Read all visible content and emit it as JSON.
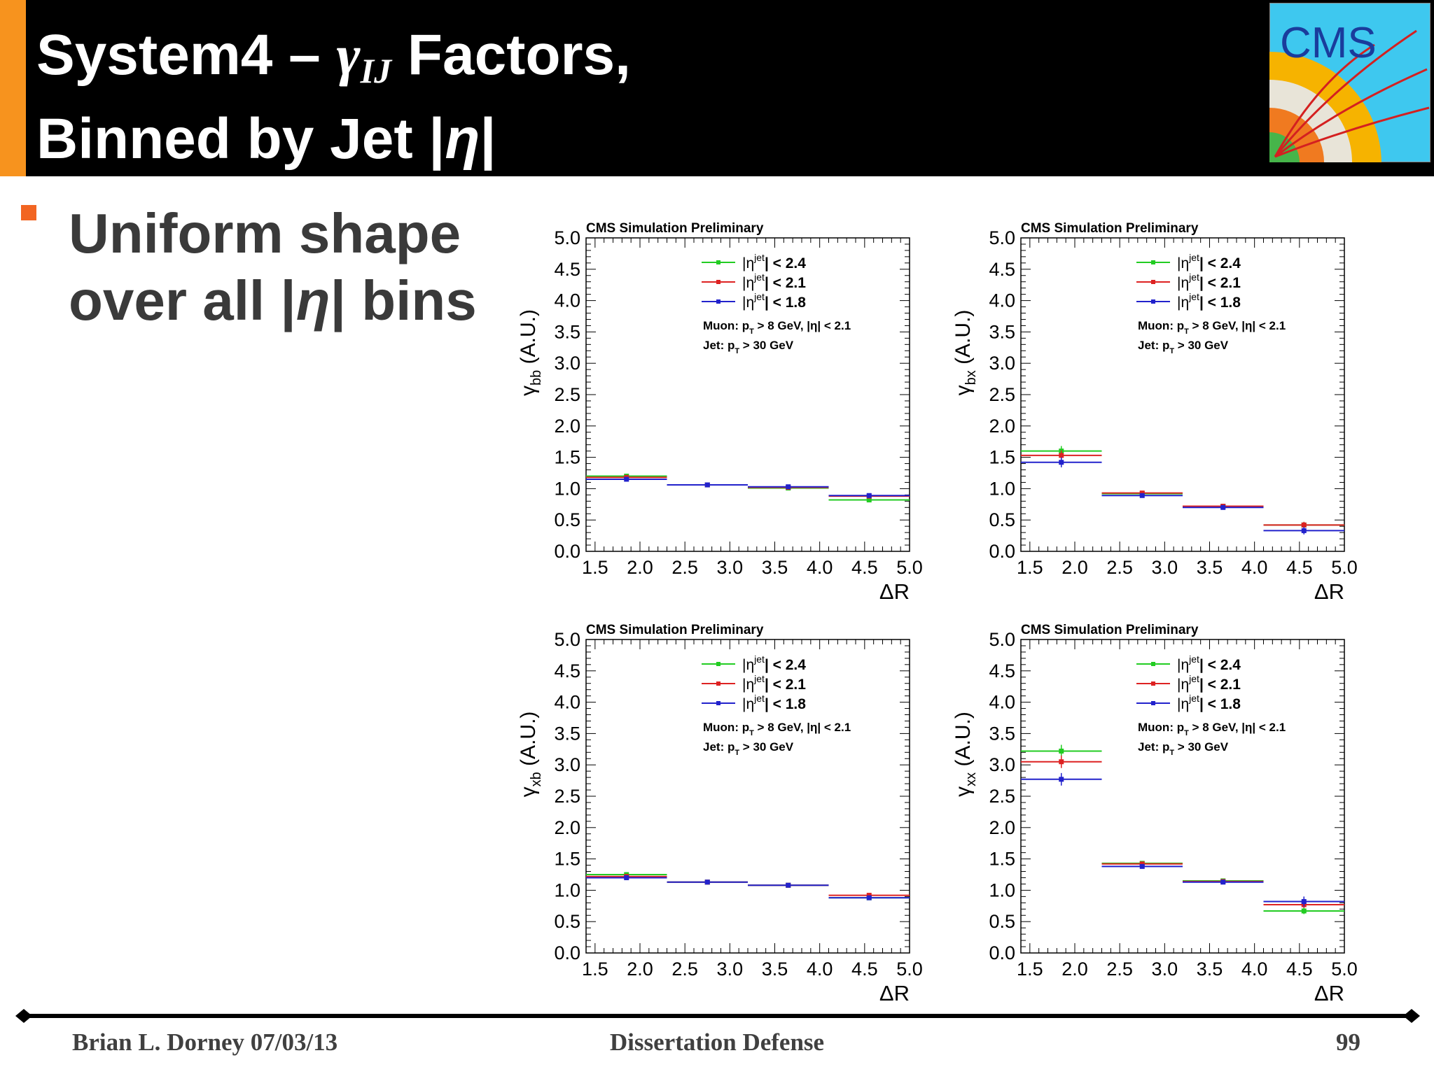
{
  "header": {
    "title_line1_prefix": "System4 – ",
    "title_symbol": "γ",
    "title_subscript": "IJ",
    "title_line1_suffix": " Factors,",
    "title_line2_prefix": "Binned by Jet |",
    "title_line2_eta": "η",
    "title_line2_suffix": "|",
    "logo_text": "CMS",
    "colors": {
      "background": "#000000",
      "accent": "#f7931e",
      "text": "#ffffff"
    }
  },
  "bullet": {
    "line1": "Uniform shape",
    "line2_prefix": "over all |",
    "line2_eta": "η",
    "line2_suffix": "| bins",
    "marker_color": "#f26522"
  },
  "footer": {
    "left": "Brian L. Dorney 07/03/13",
    "center": "Dissertation Defense",
    "right": "99"
  },
  "chart_data": [
    {
      "type": "line",
      "title": "CMS Simulation Preliminary",
      "ylabel_symbol": "γ",
      "ylabel_subscript": "bb",
      "ylabel_units": "(A.U.)",
      "xlabel": "ΔR",
      "xlim": [
        1.4,
        5.0
      ],
      "ylim": [
        0.0,
        5.0
      ],
      "xticks": [
        "1.5",
        "2.0",
        "2.5",
        "3.0",
        "3.5",
        "4.0",
        "4.5",
        "5.0"
      ],
      "yticks": [
        "0.0",
        "0.5",
        "1.0",
        "1.5",
        "2.0",
        "2.5",
        "3.0",
        "3.5",
        "4.0",
        "4.5",
        "5.0"
      ],
      "bin_edges": [
        1.4,
        2.3,
        3.2,
        4.1,
        5.0
      ],
      "bin_centers": [
        1.85,
        2.75,
        3.65,
        4.55
      ],
      "legend_placement": "top-center",
      "series": [
        {
          "name": "< 2.4",
          "color": "#22cc22",
          "values": [
            1.2,
            1.06,
            1.01,
            0.82
          ],
          "errors": [
            0.03,
            0.02,
            0.02,
            0.03
          ]
        },
        {
          "name": "< 2.1",
          "color": "#dd2222",
          "values": [
            1.18,
            1.06,
            1.02,
            0.88
          ],
          "errors": [
            0.03,
            0.02,
            0.02,
            0.03
          ]
        },
        {
          "name": "< 1.8",
          "color": "#2222cc",
          "values": [
            1.15,
            1.06,
            1.03,
            0.89
          ],
          "errors": [
            0.03,
            0.02,
            0.02,
            0.03
          ]
        }
      ],
      "legend_label": "|η",
      "legend_superscript": "jet",
      "annotation1": "Muon: p",
      "annotation1_sub": "T",
      "annotation1_rest": " > 8 GeV, |η| < 2.1",
      "annotation2": "Jet: p",
      "annotation2_sub": "T",
      "annotation2_rest": " > 30 GeV"
    },
    {
      "type": "line",
      "title": "CMS Simulation Preliminary",
      "ylabel_symbol": "γ",
      "ylabel_subscript": "bx",
      "ylabel_units": "(A.U.)",
      "xlabel": "ΔR",
      "xlim": [
        1.4,
        5.0
      ],
      "ylim": [
        0.0,
        5.0
      ],
      "xticks": [
        "1.5",
        "2.0",
        "2.5",
        "3.0",
        "3.5",
        "4.0",
        "4.5",
        "5.0"
      ],
      "yticks": [
        "0.0",
        "0.5",
        "1.0",
        "1.5",
        "2.0",
        "2.5",
        "3.0",
        "3.5",
        "4.0",
        "4.5",
        "5.0"
      ],
      "bin_edges": [
        1.4,
        2.3,
        3.2,
        4.1,
        5.0
      ],
      "bin_centers": [
        1.85,
        2.75,
        3.65,
        4.55
      ],
      "legend_placement": "top-center",
      "series": [
        {
          "name": "< 2.4",
          "color": "#22cc22",
          "values": [
            1.6,
            0.92,
            0.72,
            0.42
          ],
          "errors": [
            0.08,
            0.03,
            0.03,
            0.05
          ]
        },
        {
          "name": "< 2.1",
          "color": "#dd2222",
          "values": [
            1.53,
            0.93,
            0.72,
            0.42
          ],
          "errors": [
            0.08,
            0.03,
            0.03,
            0.05
          ]
        },
        {
          "name": "< 1.8",
          "color": "#2222cc",
          "values": [
            1.42,
            0.89,
            0.7,
            0.33
          ],
          "errors": [
            0.08,
            0.03,
            0.03,
            0.06
          ]
        }
      ],
      "legend_label": "|η",
      "legend_superscript": "jet",
      "annotation1": "Muon: p",
      "annotation1_sub": "T",
      "annotation1_rest": " > 8 GeV, |η| < 2.1",
      "annotation2": "Jet: p",
      "annotation2_sub": "T",
      "annotation2_rest": " > 30 GeV"
    },
    {
      "type": "line",
      "title": "CMS Simulation Preliminary",
      "ylabel_symbol": "γ",
      "ylabel_subscript": "xb",
      "ylabel_units": "(A.U.)",
      "xlabel": "ΔR",
      "xlim": [
        1.4,
        5.0
      ],
      "ylim": [
        0.0,
        5.0
      ],
      "xticks": [
        "1.5",
        "2.0",
        "2.5",
        "3.0",
        "3.5",
        "4.0",
        "4.5",
        "5.0"
      ],
      "yticks": [
        "0.0",
        "0.5",
        "1.0",
        "1.5",
        "2.0",
        "2.5",
        "3.0",
        "3.5",
        "4.0",
        "4.5",
        "5.0"
      ],
      "bin_edges": [
        1.4,
        2.3,
        3.2,
        4.1,
        5.0
      ],
      "bin_centers": [
        1.85,
        2.75,
        3.65,
        4.55
      ],
      "legend_placement": "top-center",
      "series": [
        {
          "name": "< 2.4",
          "color": "#22cc22",
          "values": [
            1.25,
            1.13,
            1.08,
            0.88
          ],
          "errors": [
            0.03,
            0.02,
            0.02,
            0.03
          ]
        },
        {
          "name": "< 2.1",
          "color": "#dd2222",
          "values": [
            1.22,
            1.13,
            1.08,
            0.92
          ],
          "errors": [
            0.03,
            0.02,
            0.02,
            0.03
          ]
        },
        {
          "name": "< 1.8",
          "color": "#2222cc",
          "values": [
            1.2,
            1.13,
            1.08,
            0.88
          ],
          "errors": [
            0.03,
            0.02,
            0.02,
            0.03
          ]
        }
      ],
      "legend_label": "|η",
      "legend_superscript": "jet",
      "annotation1": "Muon: p",
      "annotation1_sub": "T",
      "annotation1_rest": " > 8 GeV, |η| < 2.1",
      "annotation2": "Jet: p",
      "annotation2_sub": "T",
      "annotation2_rest": " > 30 GeV"
    },
    {
      "type": "line",
      "title": "CMS Simulation Preliminary",
      "ylabel_symbol": "γ",
      "ylabel_subscript": "xx",
      "ylabel_units": "(A.U.)",
      "xlabel": "ΔR",
      "xlim": [
        1.4,
        5.0
      ],
      "ylim": [
        0.0,
        5.0
      ],
      "xticks": [
        "1.5",
        "2.0",
        "2.5",
        "3.0",
        "3.5",
        "4.0",
        "4.5",
        "5.0"
      ],
      "yticks": [
        "0.0",
        "0.5",
        "1.0",
        "1.5",
        "2.0",
        "2.5",
        "3.0",
        "3.5",
        "4.0",
        "4.5",
        "5.0"
      ],
      "bin_edges": [
        1.4,
        2.3,
        3.2,
        4.1,
        5.0
      ],
      "bin_centers": [
        1.85,
        2.75,
        3.65,
        4.55
      ],
      "legend_placement": "top-center",
      "series": [
        {
          "name": "< 2.4",
          "color": "#22cc22",
          "values": [
            3.22,
            1.43,
            1.15,
            0.67
          ],
          "errors": [
            0.1,
            0.03,
            0.03,
            0.05
          ]
        },
        {
          "name": "< 2.1",
          "color": "#dd2222",
          "values": [
            3.05,
            1.42,
            1.14,
            0.77
          ],
          "errors": [
            0.1,
            0.03,
            0.03,
            0.05
          ]
        },
        {
          "name": "< 1.8",
          "color": "#2222cc",
          "values": [
            2.77,
            1.38,
            1.13,
            0.82
          ],
          "errors": [
            0.1,
            0.03,
            0.03,
            0.08
          ]
        }
      ],
      "legend_label": "|η",
      "legend_superscript": "jet",
      "annotation1": "Muon: p",
      "annotation1_sub": "T",
      "annotation1_rest": " > 8 GeV, |η| < 2.1",
      "annotation2": "Jet: p",
      "annotation2_sub": "T",
      "annotation2_rest": " > 30 GeV"
    }
  ]
}
